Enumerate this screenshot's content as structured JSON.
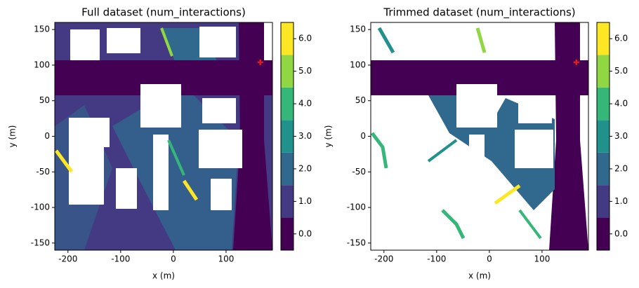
{
  "chart_data": [
    {
      "type": "heatmap",
      "title": "Full dataset (num_interactions)",
      "x_label": "x (m)",
      "y_label": "y (m)",
      "xlim": [
        -225,
        188
      ],
      "ylim": [
        -160,
        160
      ],
      "xticks": [
        -200,
        -100,
        0,
        100
      ],
      "yticks": [
        -150,
        -100,
        -50,
        0,
        50,
        100,
        150
      ],
      "colorbar": {
        "levels": [
          -0.5,
          0.5,
          1.5,
          2.5,
          3.5,
          4.5,
          5.5,
          6.5
        ],
        "colors": [
          "#440154",
          "#443983",
          "#31688e",
          "#21918c",
          "#35b779",
          "#90d743",
          "#fde725"
        ],
        "ticks": [
          {
            "value": 0,
            "label": "0.0"
          },
          {
            "value": 1,
            "label": "1.0"
          },
          {
            "value": 2,
            "label": "2.0"
          },
          {
            "value": 3,
            "label": "3.0"
          },
          {
            "value": 4,
            "label": "4.0"
          },
          {
            "value": 5,
            "label": "5.0"
          },
          {
            "value": 6,
            "label": "6.0"
          }
        ]
      },
      "marker": {
        "x": 165,
        "y": 104,
        "color": "#e41a1c"
      }
    },
    {
      "type": "heatmap",
      "title": "Trimmed dataset (num_interactions)",
      "x_label": "x (m)",
      "y_label": "y (m)",
      "xlim": [
        -225,
        188
      ],
      "ylim": [
        -160,
        160
      ],
      "xticks": [
        -200,
        -100,
        0,
        100
      ],
      "yticks": [
        -150,
        -100,
        -50,
        0,
        50,
        100,
        150
      ],
      "colorbar": {
        "levels": [
          -0.5,
          0.5,
          1.5,
          2.5,
          3.5,
          4.5,
          5.5,
          6.5
        ],
        "colors": [
          "#440154",
          "#443983",
          "#31688e",
          "#21918c",
          "#35b779",
          "#90d743",
          "#fde725"
        ],
        "ticks": [
          {
            "value": 0,
            "label": "0.0"
          },
          {
            "value": 1,
            "label": "1.0"
          },
          {
            "value": 2,
            "label": "2.0"
          },
          {
            "value": 3,
            "label": "3.0"
          },
          {
            "value": 4,
            "label": "4.0"
          },
          {
            "value": 5,
            "label": "5.0"
          },
          {
            "value": 6,
            "label": "6.0"
          }
        ]
      },
      "marker": {
        "x": 165,
        "y": 104,
        "color": "#e41a1c"
      }
    }
  ]
}
